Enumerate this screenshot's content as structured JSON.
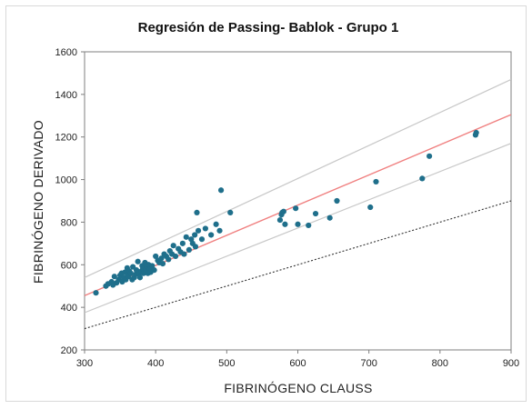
{
  "chart_data": {
    "type": "scatter",
    "title": "Regresión de Passing- Bablok - Grupo 1",
    "xlabel": "FIBRINÓGENO  CLAUSS",
    "ylabel": "FIBRINÓGENO  DERIVADO",
    "xlim": [
      300,
      900
    ],
    "ylim": [
      200,
      1600
    ],
    "xticks": [
      "300",
      "400",
      "500",
      "600",
      "700",
      "800",
      "900"
    ],
    "yticks": [
      "200",
      "400",
      "600",
      "800",
      "1000",
      "1200",
      "1400",
      "1600"
    ],
    "grid": false,
    "colors": {
      "points": "#1f6f8b",
      "regression": "#f08080",
      "confidence": "#c8c8c8",
      "identity": "#333333"
    },
    "series": [
      {
        "type": "scatter",
        "points": [
          [
            316,
            468
          ],
          [
            330,
            500
          ],
          [
            333,
            510
          ],
          [
            338,
            520
          ],
          [
            340,
            505
          ],
          [
            342,
            545
          ],
          [
            345,
            515
          ],
          [
            348,
            530
          ],
          [
            350,
            550
          ],
          [
            352,
            560
          ],
          [
            353,
            520
          ],
          [
            355,
            540
          ],
          [
            357,
            565
          ],
          [
            358,
            530
          ],
          [
            360,
            585
          ],
          [
            361,
            555
          ],
          [
            362,
            545
          ],
          [
            363,
            570
          ],
          [
            365,
            560
          ],
          [
            367,
            530
          ],
          [
            368,
            590
          ],
          [
            370,
            540
          ],
          [
            372,
            555
          ],
          [
            373,
            575
          ],
          [
            375,
            615
          ],
          [
            377,
            560
          ],
          [
            378,
            540
          ],
          [
            380,
            570
          ],
          [
            381,
            595
          ],
          [
            382,
            580
          ],
          [
            383,
            560
          ],
          [
            385,
            610
          ],
          [
            386,
            575
          ],
          [
            388,
            590
          ],
          [
            389,
            560
          ],
          [
            390,
            600
          ],
          [
            392,
            580
          ],
          [
            393,
            565
          ],
          [
            395,
            595
          ],
          [
            398,
            575
          ],
          [
            400,
            640
          ],
          [
            403,
            620
          ],
          [
            405,
            610
          ],
          [
            408,
            630
          ],
          [
            410,
            605
          ],
          [
            412,
            650
          ],
          [
            415,
            640
          ],
          [
            418,
            625
          ],
          [
            420,
            665
          ],
          [
            423,
            650
          ],
          [
            425,
            690
          ],
          [
            428,
            640
          ],
          [
            432,
            675
          ],
          [
            435,
            660
          ],
          [
            438,
            700
          ],
          [
            440,
            650
          ],
          [
            443,
            730
          ],
          [
            447,
            670
          ],
          [
            450,
            720
          ],
          [
            452,
            700
          ],
          [
            455,
            740
          ],
          [
            456,
            685
          ],
          [
            458,
            845
          ],
          [
            460,
            760
          ],
          [
            465,
            720
          ],
          [
            470,
            770
          ],
          [
            478,
            740
          ],
          [
            485,
            790
          ],
          [
            490,
            760
          ],
          [
            492,
            950
          ],
          [
            505,
            845
          ],
          [
            575,
            810
          ],
          [
            577,
            835
          ],
          [
            578,
            845
          ],
          [
            580,
            850
          ],
          [
            582,
            790
          ],
          [
            597,
            865
          ],
          [
            600,
            790
          ],
          [
            615,
            785
          ],
          [
            625,
            840
          ],
          [
            645,
            820
          ],
          [
            655,
            900
          ],
          [
            702,
            870
          ],
          [
            710,
            990
          ],
          [
            775,
            1005
          ],
          [
            785,
            1110
          ],
          [
            850,
            1210
          ],
          [
            851,
            1220
          ]
        ]
      },
      {
        "type": "line",
        "role": "regression",
        "x": [
          300,
          900
        ],
        "y": [
          455,
          1305
        ]
      },
      {
        "type": "line",
        "role": "upper-confidence",
        "x": [
          300,
          900
        ],
        "y": [
          540,
          1470
        ]
      },
      {
        "type": "line",
        "role": "lower-confidence",
        "x": [
          300,
          900
        ],
        "y": [
          375,
          1170
        ]
      },
      {
        "type": "line",
        "role": "identity",
        "x": [
          300,
          900
        ],
        "y": [
          300,
          900
        ]
      }
    ]
  }
}
